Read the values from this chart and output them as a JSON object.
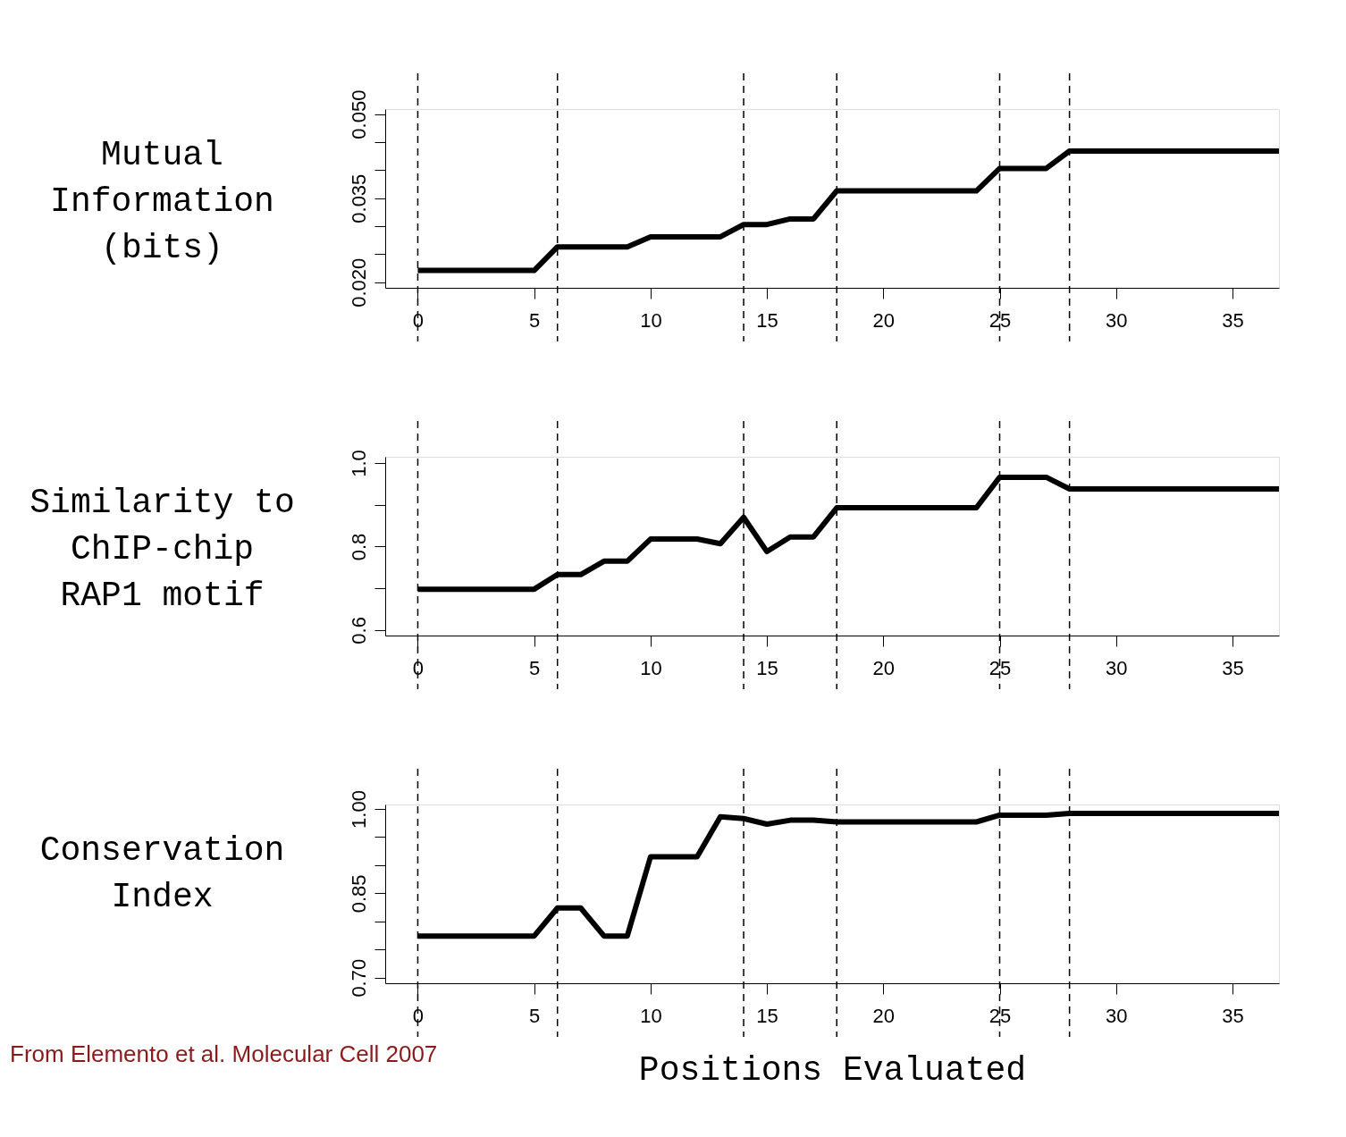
{
  "chart_data": [
    {
      "type": "line",
      "ylabel": "Mutual\nInformation\n(bits)",
      "x": [
        0,
        1,
        2,
        3,
        4,
        5,
        6,
        7,
        8,
        9,
        10,
        11,
        12,
        13,
        14,
        15,
        16,
        17,
        18,
        19,
        20,
        21,
        22,
        23,
        24,
        25,
        26,
        27,
        28,
        29,
        30,
        31,
        32,
        33,
        34,
        35,
        36,
        37
      ],
      "series": [
        {
          "color": "#000000",
          "values": [
            0.0221,
            0.0221,
            0.0221,
            0.0221,
            0.0221,
            0.0221,
            0.0263,
            0.0263,
            0.0263,
            0.0263,
            0.0281,
            0.0281,
            0.0281,
            0.0281,
            0.0303,
            0.0303,
            0.0313,
            0.0313,
            0.0363,
            0.0363,
            0.0363,
            0.0363,
            0.0363,
            0.0363,
            0.0363,
            0.0403,
            0.0403,
            0.0403,
            0.0434,
            0.0434,
            0.0434,
            0.0434,
            0.0434,
            0.0434,
            0.0434,
            0.0434,
            0.0434,
            0.0434
          ]
        }
      ],
      "xlim": [
        -1.4,
        37
      ],
      "xticks": [
        0,
        5,
        10,
        15,
        20,
        25,
        30,
        35
      ],
      "ylim": [
        0.019,
        0.0509
      ],
      "yticks": [
        {
          "value": 0.02,
          "label": "0.020"
        },
        {
          "value": 0.025,
          "label": null
        },
        {
          "value": 0.03,
          "label": null
        },
        {
          "value": 0.035,
          "label": "0.035"
        },
        {
          "value": 0.04,
          "label": null
        },
        {
          "value": 0.045,
          "label": null
        },
        {
          "value": 0.05,
          "label": "0.050"
        }
      ],
      "ref_lines": [
        {
          "axis": "x",
          "value": 0,
          "line_style": "dashed"
        },
        {
          "axis": "x",
          "value": 6,
          "line_style": "dashed"
        },
        {
          "axis": "x",
          "value": 14,
          "line_style": "dashed"
        },
        {
          "axis": "x",
          "value": 18,
          "line_style": "dashed"
        },
        {
          "axis": "x",
          "value": 25,
          "line_style": "dashed"
        },
        {
          "axis": "x",
          "value": 28,
          "line_style": "dashed"
        }
      ],
      "line_style": "solid",
      "marker": "none"
    },
    {
      "type": "line",
      "ylabel": "Similarity to\nChIP-chip\nRAP1 motif",
      "x": [
        0,
        1,
        2,
        3,
        4,
        5,
        6,
        7,
        8,
        9,
        10,
        11,
        12,
        13,
        14,
        15,
        16,
        17,
        18,
        19,
        20,
        21,
        22,
        23,
        24,
        25,
        26,
        27,
        28,
        29,
        30,
        31,
        32,
        33,
        34,
        35,
        36,
        37
      ],
      "series": [
        {
          "color": "#000000",
          "values": [
            0.698,
            0.698,
            0.698,
            0.698,
            0.698,
            0.698,
            0.733,
            0.733,
            0.765,
            0.765,
            0.818,
            0.818,
            0.818,
            0.807,
            0.87,
            0.788,
            0.823,
            0.823,
            0.893,
            0.893,
            0.893,
            0.893,
            0.893,
            0.893,
            0.893,
            0.966,
            0.966,
            0.966,
            0.938,
            0.938,
            0.938,
            0.938,
            0.938,
            0.938,
            0.938,
            0.938,
            0.938,
            0.938
          ]
        }
      ],
      "xlim": [
        -1.4,
        37
      ],
      "xticks": [
        0,
        5,
        10,
        15,
        20,
        25,
        30,
        35
      ],
      "ylim": [
        0.587,
        1.015
      ],
      "yticks": [
        {
          "value": 0.6,
          "label": "0.6"
        },
        {
          "value": 0.7,
          "label": null
        },
        {
          "value": 0.8,
          "label": "0.8"
        },
        {
          "value": 0.9,
          "label": null
        },
        {
          "value": 1.0,
          "label": "1.0"
        }
      ],
      "ref_lines": [
        {
          "axis": "x",
          "value": 0,
          "line_style": "dashed"
        },
        {
          "axis": "x",
          "value": 6,
          "line_style": "dashed"
        },
        {
          "axis": "x",
          "value": 14,
          "line_style": "dashed"
        },
        {
          "axis": "x",
          "value": 18,
          "line_style": "dashed"
        },
        {
          "axis": "x",
          "value": 25,
          "line_style": "dashed"
        },
        {
          "axis": "x",
          "value": 28,
          "line_style": "dashed"
        }
      ],
      "line_style": "solid",
      "marker": "none"
    },
    {
      "type": "line",
      "ylabel": "Conservation\nIndex",
      "xlabel": "Positions Evaluated",
      "x": [
        0,
        1,
        2,
        3,
        4,
        5,
        6,
        7,
        8,
        9,
        10,
        11,
        12,
        13,
        14,
        15,
        16,
        17,
        18,
        19,
        20,
        21,
        22,
        23,
        24,
        25,
        26,
        27,
        28,
        29,
        30,
        31,
        32,
        33,
        34,
        35,
        36,
        37
      ],
      "series": [
        {
          "color": "#000000",
          "values": [
            0.774,
            0.774,
            0.774,
            0.774,
            0.774,
            0.774,
            0.824,
            0.824,
            0.774,
            0.774,
            0.915,
            0.915,
            0.915,
            0.986,
            0.983,
            0.973,
            0.98,
            0.98,
            0.977,
            0.977,
            0.977,
            0.977,
            0.977,
            0.977,
            0.977,
            0.989,
            0.989,
            0.989,
            0.992,
            0.992,
            0.992,
            0.992,
            0.992,
            0.992,
            0.992,
            0.992,
            0.992,
            0.992
          ]
        }
      ],
      "xlim": [
        -1.4,
        37
      ],
      "xticks": [
        0,
        5,
        10,
        15,
        20,
        25,
        30,
        35
      ],
      "ylim": [
        0.69,
        1.008
      ],
      "yticks": [
        {
          "value": 0.7,
          "label": "0.70"
        },
        {
          "value": 0.75,
          "label": null
        },
        {
          "value": 0.8,
          "label": null
        },
        {
          "value": 0.85,
          "label": "0.85"
        },
        {
          "value": 0.9,
          "label": null
        },
        {
          "value": 0.95,
          "label": null
        },
        {
          "value": 1.0,
          "label": "1.00"
        }
      ],
      "ref_lines": [
        {
          "axis": "x",
          "value": 0,
          "line_style": "dashed"
        },
        {
          "axis": "x",
          "value": 6,
          "line_style": "dashed"
        },
        {
          "axis": "x",
          "value": 14,
          "line_style": "dashed"
        },
        {
          "axis": "x",
          "value": 18,
          "line_style": "dashed"
        },
        {
          "axis": "x",
          "value": 25,
          "line_style": "dashed"
        },
        {
          "axis": "x",
          "value": 28,
          "line_style": "dashed"
        }
      ],
      "annotations": [
        "From Elemento et al. Molecular Cell 2007"
      ],
      "line_style": "solid",
      "marker": "none"
    }
  ]
}
